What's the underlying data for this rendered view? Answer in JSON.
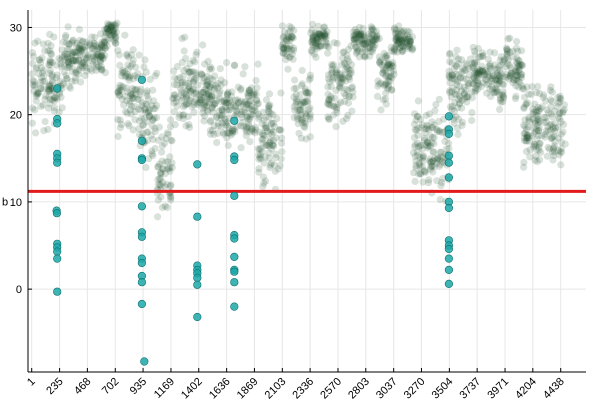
{
  "chart_data": {
    "type": "scatter",
    "title": "",
    "xlabel": "",
    "ylabel": "b",
    "xlim": [
      -30,
      4650
    ],
    "ylim": [
      -9.5,
      32
    ],
    "x_ticks": [
      1,
      235,
      468,
      702,
      935,
      1169,
      1402,
      1636,
      1869,
      2103,
      2336,
      2570,
      2803,
      3037,
      3270,
      3504,
      3737,
      3971,
      4204,
      4438
    ],
    "x_tick_labels": [
      "1",
      "235",
      "468",
      "702",
      "935",
      "1169",
      "1402",
      "1636",
      "1869",
      "2103",
      "2336",
      "2570",
      "2803",
      "3037",
      "3270",
      "3504",
      "3737",
      "3971",
      "4204",
      "4438"
    ],
    "y_ticks": [
      0,
      10,
      20,
      30
    ],
    "y_tick_labels": [
      "0",
      "10",
      "20",
      "30"
    ],
    "grid": true,
    "legend": "none",
    "threshold": {
      "y": 11.2,
      "color": "#e31a1c"
    },
    "colors": {
      "background_points": "#1e4d2b",
      "highlight_points": "#1ca8a8",
      "highlight_edge": "#0e6f6f"
    },
    "segments": [
      {
        "x": [
          0,
          260
        ],
        "center": 24,
        "spread": 3.2
      },
      {
        "x": [
          260,
          480
        ],
        "center": 26.5,
        "spread": 2.0
      },
      {
        "x": [
          480,
          620
        ],
        "center": 27,
        "spread": 2.0
      },
      {
        "x": [
          620,
          720
        ],
        "center": 29.5,
        "spread": 1.0
      },
      {
        "x": [
          720,
          900
        ],
        "center": 23,
        "spread": 3.5
      },
      {
        "x": [
          900,
          1050
        ],
        "center": 20,
        "spread": 4.0
      },
      {
        "x": [
          1050,
          1180
        ],
        "center": 13.5,
        "spread": 3.5
      },
      {
        "x": [
          1180,
          1500
        ],
        "center": 23,
        "spread": 3.0
      },
      {
        "x": [
          1500,
          1900
        ],
        "center": 21,
        "spread": 3.0
      },
      {
        "x": [
          1900,
          2100
        ],
        "center": 17,
        "spread": 3.5
      },
      {
        "x": [
          2100,
          2200
        ],
        "center": 28,
        "spread": 1.5
      },
      {
        "x": [
          2200,
          2340
        ],
        "center": 21,
        "spread": 2.5
      },
      {
        "x": [
          2340,
          2480
        ],
        "center": 28.5,
        "spread": 1.2
      },
      {
        "x": [
          2480,
          2700
        ],
        "center": 23.5,
        "spread": 3.0
      },
      {
        "x": [
          2700,
          2900
        ],
        "center": 28.5,
        "spread": 1.2
      },
      {
        "x": [
          2900,
          3040
        ],
        "center": 25,
        "spread": 2.5
      },
      {
        "x": [
          3040,
          3200
        ],
        "center": 28.5,
        "spread": 1.2
      },
      {
        "x": [
          3200,
          3500
        ],
        "center": 16,
        "spread": 3.5
      },
      {
        "x": [
          3500,
          3700
        ],
        "center": 23,
        "spread": 3.0
      },
      {
        "x": [
          3700,
          3850
        ],
        "center": 25,
        "spread": 2.0
      },
      {
        "x": [
          3850,
          3970
        ],
        "center": 24,
        "spread": 2.2
      },
      {
        "x": [
          3970,
          4120
        ],
        "center": 25.5,
        "spread": 2.0
      },
      {
        "x": [
          4120,
          4480
        ],
        "center": 19,
        "spread": 3.0
      }
    ],
    "highlight_points": [
      {
        "x": 215,
        "y": 23
      },
      {
        "x": 215,
        "y": 19.5
      },
      {
        "x": 215,
        "y": 19
      },
      {
        "x": 215,
        "y": 15.5
      },
      {
        "x": 215,
        "y": 15
      },
      {
        "x": 215,
        "y": 14.5
      },
      {
        "x": 210,
        "y": 9
      },
      {
        "x": 212,
        "y": 8.7
      },
      {
        "x": 215,
        "y": 5.2
      },
      {
        "x": 215,
        "y": 4.8
      },
      {
        "x": 215,
        "y": 4.3
      },
      {
        "x": 215,
        "y": 3.5
      },
      {
        "x": 215,
        "y": -0.3
      },
      {
        "x": 925,
        "y": 24
      },
      {
        "x": 925,
        "y": 17
      },
      {
        "x": 925,
        "y": 15
      },
      {
        "x": 925,
        "y": 14.8
      },
      {
        "x": 925,
        "y": 9.5
      },
      {
        "x": 925,
        "y": 6.5
      },
      {
        "x": 925,
        "y": 6
      },
      {
        "x": 925,
        "y": 3.5
      },
      {
        "x": 925,
        "y": 3
      },
      {
        "x": 925,
        "y": 1.5
      },
      {
        "x": 925,
        "y": 0.8
      },
      {
        "x": 925,
        "y": -1.7
      },
      {
        "x": 945,
        "y": -8.3
      },
      {
        "x": 1390,
        "y": 14.3
      },
      {
        "x": 1390,
        "y": 8.3
      },
      {
        "x": 1390,
        "y": 2.7
      },
      {
        "x": 1390,
        "y": 2.2
      },
      {
        "x": 1390,
        "y": 1.8
      },
      {
        "x": 1390,
        "y": 1.3
      },
      {
        "x": 1390,
        "y": 0.5
      },
      {
        "x": 1390,
        "y": -3.2
      },
      {
        "x": 1700,
        "y": 19.3
      },
      {
        "x": 1700,
        "y": 15.2
      },
      {
        "x": 1700,
        "y": 14.8
      },
      {
        "x": 1700,
        "y": 10.7
      },
      {
        "x": 1700,
        "y": 6.2
      },
      {
        "x": 1700,
        "y": 5.8
      },
      {
        "x": 1700,
        "y": 3.7
      },
      {
        "x": 1700,
        "y": 2.2
      },
      {
        "x": 1700,
        "y": 2
      },
      {
        "x": 1700,
        "y": 0.8
      },
      {
        "x": 1700,
        "y": -2
      },
      {
        "x": 3500,
        "y": 19.8
      },
      {
        "x": 3500,
        "y": 18.3
      },
      {
        "x": 3500,
        "y": 17.8
      },
      {
        "x": 3500,
        "y": 15.3
      },
      {
        "x": 3500,
        "y": 14.5
      },
      {
        "x": 3500,
        "y": 12.8
      },
      {
        "x": 3500,
        "y": 10
      },
      {
        "x": 3500,
        "y": 9.3
      },
      {
        "x": 3500,
        "y": 5.6
      },
      {
        "x": 3500,
        "y": 5
      },
      {
        "x": 3500,
        "y": 4.6
      },
      {
        "x": 3500,
        "y": 3.5
      },
      {
        "x": 3500,
        "y": 2.2
      },
      {
        "x": 3500,
        "y": 0.6
      }
    ]
  }
}
